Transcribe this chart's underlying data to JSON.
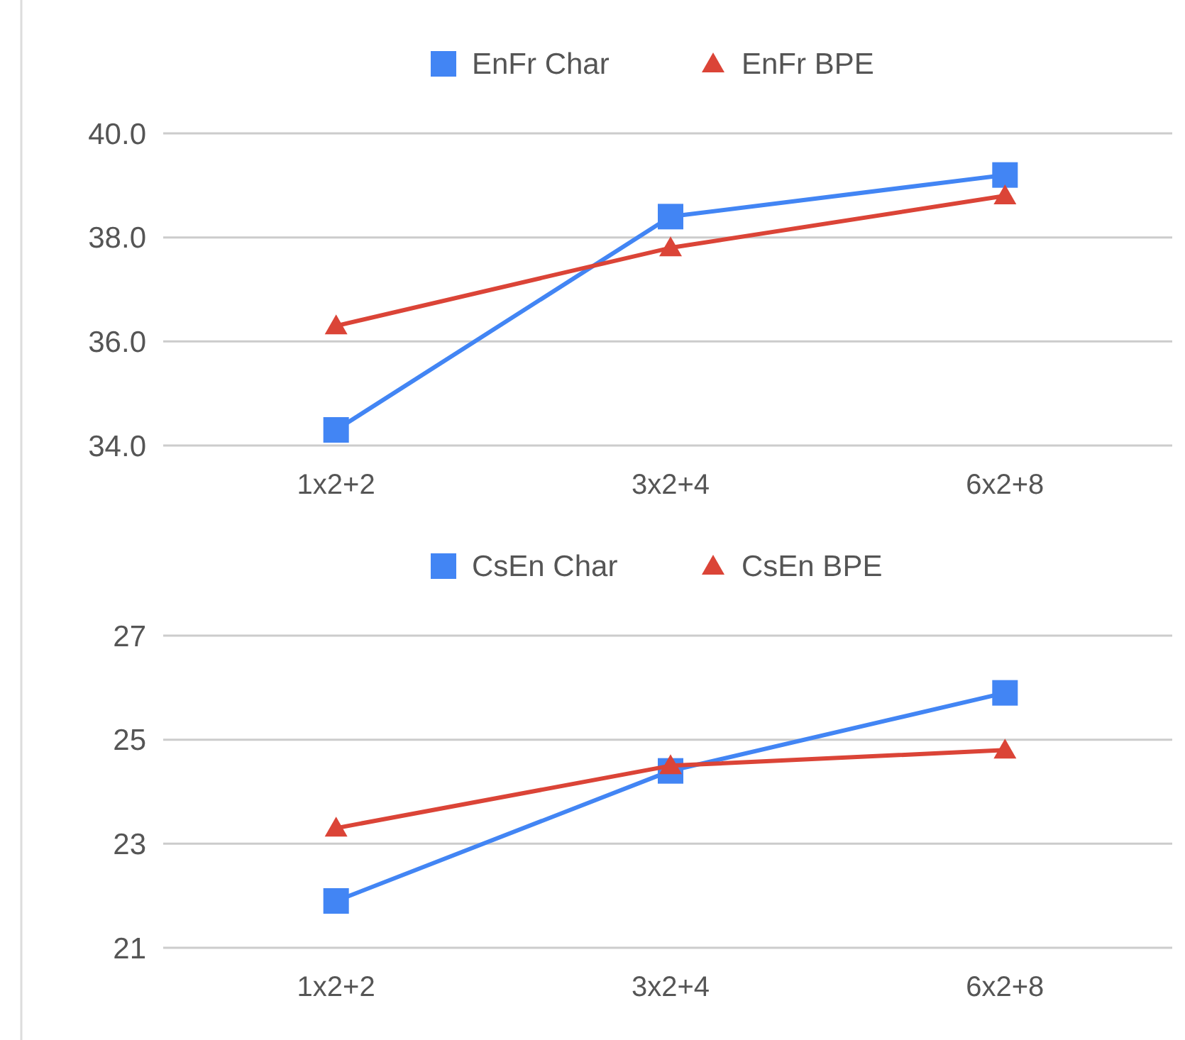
{
  "chart_data": [
    {
      "type": "line",
      "categories": [
        "1x2+2",
        "3x2+4",
        "6x2+8"
      ],
      "ylim": [
        34,
        40
      ],
      "yticks": [
        {
          "value": 34,
          "label": "34.0"
        },
        {
          "value": 36,
          "label": "36.0"
        },
        {
          "value": 38,
          "label": "38.0"
        },
        {
          "value": 40,
          "label": "40.0"
        }
      ],
      "grid": "y",
      "legend": "top",
      "series": [
        {
          "name": "EnFr Char",
          "color": "#4285f4",
          "marker": "square",
          "values": [
            34.3,
            38.4,
            39.2
          ]
        },
        {
          "name": "EnFr BPE",
          "color": "#db4437",
          "marker": "triangle",
          "values": [
            36.3,
            37.8,
            38.8
          ]
        }
      ]
    },
    {
      "type": "line",
      "categories": [
        "1x2+2",
        "3x2+4",
        "6x2+8"
      ],
      "ylim": [
        21,
        27
      ],
      "yticks": [
        21,
        23,
        25,
        27
      ],
      "grid": "y",
      "legend": "top",
      "series": [
        {
          "name": "CsEn Char",
          "color": "#4285f4",
          "marker": "square",
          "values": [
            21.9,
            24.4,
            25.9
          ]
        },
        {
          "name": "CsEn BPE",
          "color": "#db4437",
          "marker": "triangle",
          "values": [
            23.3,
            24.5,
            24.8
          ]
        }
      ]
    }
  ]
}
